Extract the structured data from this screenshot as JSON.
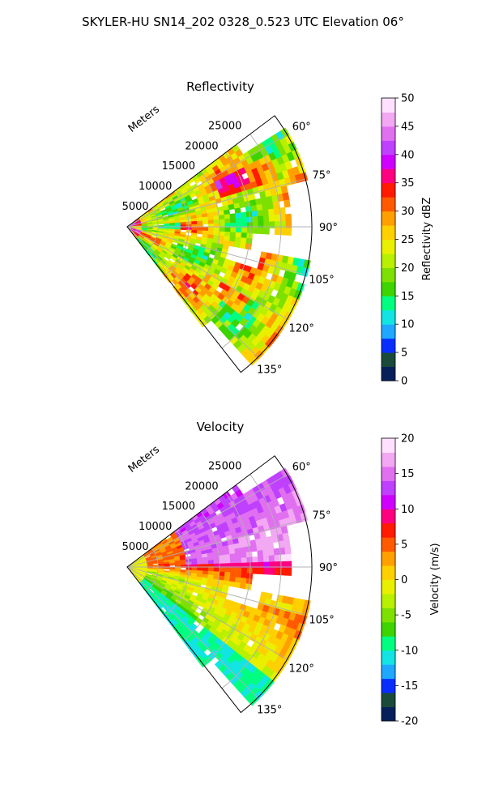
{
  "figure_title": "SKYLER-HU  SN14_202  0328_0.523 UTC Elevation 06°",
  "chart_data": [
    {
      "type": "heatmap",
      "title": "Reflectivity",
      "radial_label": "Meters",
      "range_ticks": [
        "5000",
        "10000",
        "15000",
        "20000",
        "25000"
      ],
      "range_tick_values": [
        5000,
        10000,
        15000,
        20000,
        25000
      ],
      "range_max": 30000,
      "azimuth_ticks": [
        "60°",
        "75°",
        "90°",
        "105°",
        "120°",
        "135°"
      ],
      "azimuth_tick_values": [
        60,
        75,
        90,
        105,
        120,
        135
      ],
      "azimuth_range": [
        53,
        142
      ],
      "grid": true,
      "colorbar": {
        "label": "Reflectivity dBZ",
        "min": 0,
        "max": 50,
        "ticks": [
          "0",
          "5",
          "10",
          "15",
          "20",
          "25",
          "30",
          "35",
          "40",
          "45",
          "50"
        ],
        "tick_values": [
          0,
          5,
          10,
          15,
          20,
          25,
          30,
          35,
          40,
          45,
          50
        ],
        "colors": [
          "#07205a",
          "#1a4a3a",
          "#0a2dff",
          "#1ea8ff",
          "#12e4e4",
          "#00ff80",
          "#3dd400",
          "#7ee000",
          "#b8f000",
          "#e8f000",
          "#ffd000",
          "#ffa000",
          "#ff5a00",
          "#ff1a00",
          "#ff0080",
          "#d000ff",
          "#c040ff",
          "#e070f0",
          "#f2a8f2",
          "#ffe0ff"
        ]
      }
    },
    {
      "type": "heatmap",
      "title": "Velocity",
      "radial_label": "Meters",
      "range_ticks": [
        "5000",
        "10000",
        "15000",
        "20000",
        "25000"
      ],
      "range_tick_values": [
        5000,
        10000,
        15000,
        20000,
        25000
      ],
      "range_max": 30000,
      "azimuth_ticks": [
        "60°",
        "75°",
        "90°",
        "105°",
        "120°",
        "135°"
      ],
      "azimuth_tick_values": [
        60,
        75,
        90,
        105,
        120,
        135
      ],
      "azimuth_range": [
        53,
        142
      ],
      "grid": true,
      "colorbar": {
        "label": "Velocity (m/s)",
        "min": -20,
        "max": 20,
        "ticks": [
          "-20",
          "-15",
          "-10",
          "-5",
          "0",
          "5",
          "10",
          "15",
          "20"
        ],
        "tick_values": [
          -20,
          -15,
          -10,
          -5,
          0,
          5,
          10,
          15,
          20
        ],
        "colors": [
          "#07205a",
          "#1a4a3a",
          "#0a2dff",
          "#1ea8ff",
          "#12e4e4",
          "#00ff80",
          "#3dd400",
          "#7ee000",
          "#b8f000",
          "#e8f000",
          "#ffd000",
          "#ffa000",
          "#ff5a00",
          "#ff1a00",
          "#ff0080",
          "#d000ff",
          "#c040ff",
          "#e070f0",
          "#f2a8f2",
          "#ffe0ff"
        ]
      }
    }
  ]
}
